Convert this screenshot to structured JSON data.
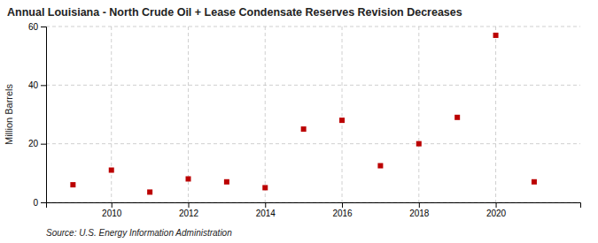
{
  "chart_data": {
    "type": "scatter",
    "title": "Annual Louisiana - North Crude Oil + Lease Condensate Reserves Revision Decreases",
    "ylabel": "Million Barrels",
    "annotations": [
      "Source: U.S. Energy Information Administration"
    ],
    "x": [
      2009,
      2010,
      2011,
      2012,
      2013,
      2014,
      2015,
      2016,
      2017,
      2018,
      2019,
      2020,
      2021
    ],
    "values": [
      6.0,
      11.0,
      3.5,
      8.0,
      7.0,
      5.0,
      25.0,
      28.0,
      12.5,
      20.0,
      29.0,
      57.0,
      7.0
    ],
    "color": "#bb0000",
    "marker": "square",
    "xlim": [
      2008.3,
      2022.2
    ],
    "ylim": [
      0,
      60
    ],
    "xticks": [
      2010,
      2012,
      2014,
      2016,
      2018,
      2020
    ],
    "yticks": [
      0,
      20,
      40,
      60
    ],
    "grid": true
  }
}
